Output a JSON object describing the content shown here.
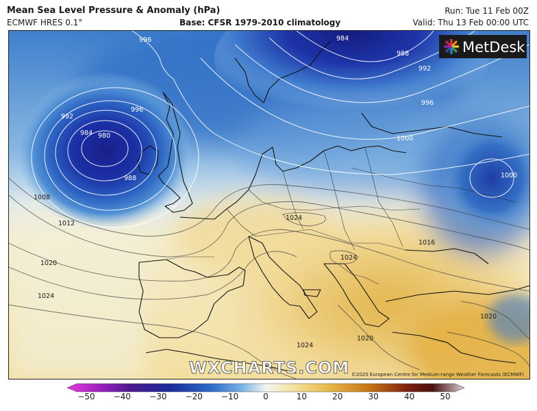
{
  "header": {
    "title": "Mean Sea Level Pressure & Anomaly (hPa)",
    "model": "ECMWF HRES 0.1°",
    "base": "Base: CFSR 1979-2010 climatology",
    "run": "Run: Tue 11 Feb 00Z",
    "valid": "Valid: Thu 13 Feb 00:00 UTC"
  },
  "branding": {
    "logo_text": "MetDesk",
    "watermark": "WXCHARTS.COM",
    "copyright": "©2020 European Centre for Medium-range Weather Forecasts (ECMWF)"
  },
  "isobars": {
    "low_centre": [
      "980",
      "984",
      "988",
      "992",
      "996"
    ],
    "low_north": [
      "984",
      "988",
      "992",
      "996"
    ],
    "low_top": "996",
    "east": "1000",
    "east_low": "1000",
    "west": [
      "1008",
      "1012"
    ],
    "south_west": [
      "1020",
      "1024"
    ],
    "med": [
      "1024",
      "1024",
      "1024",
      "1020",
      "1016",
      "1020"
    ]
  },
  "colorbar": {
    "ticks": [
      "−50",
      "−40",
      "−30",
      "−20",
      "−10",
      "0",
      "10",
      "20",
      "30",
      "40",
      "50"
    ],
    "colors": [
      "#cc33cc",
      "#7a1aa0",
      "#2a1a7a",
      "#1a3ab0",
      "#3b83d0",
      "#d9e8f4",
      "#f4e6b0",
      "#e0b040",
      "#c77a18",
      "#7a2a10",
      "#5a1a10"
    ]
  }
}
